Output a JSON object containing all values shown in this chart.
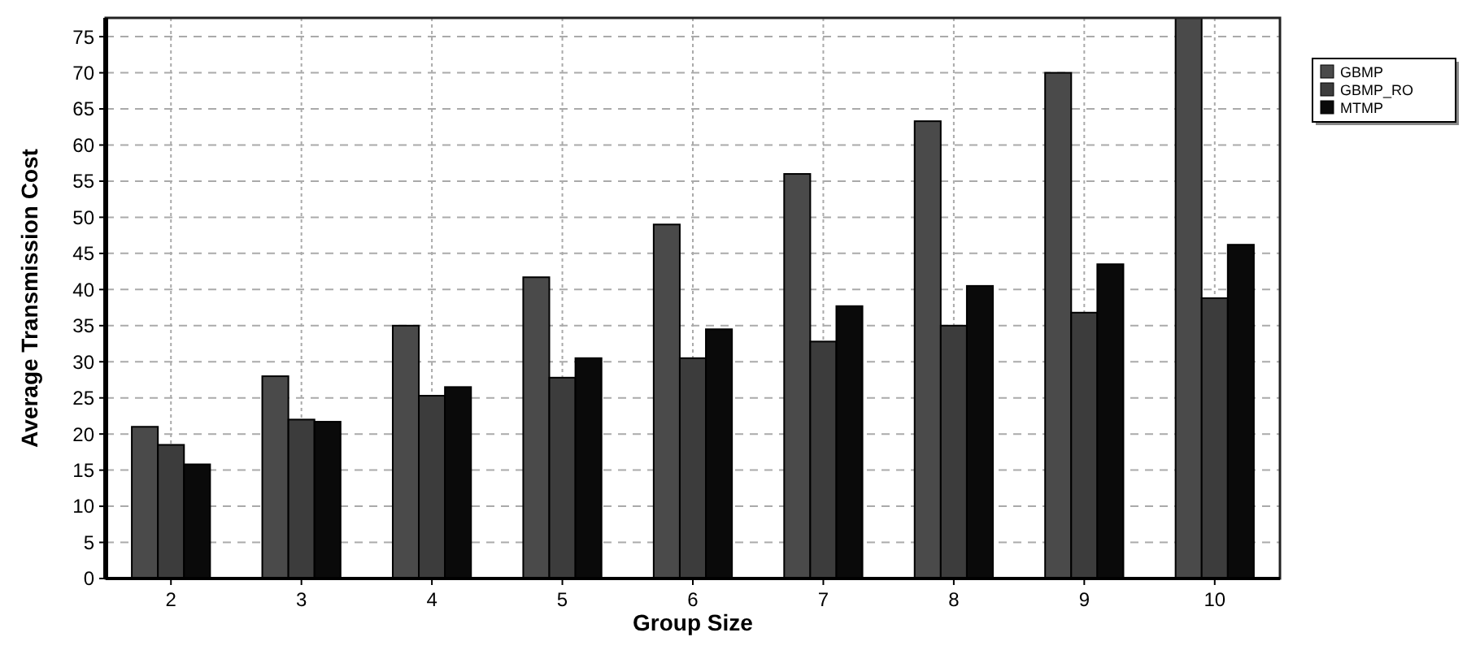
{
  "chart_data": {
    "type": "bar",
    "xlabel": "Group Size",
    "ylabel": "Average Transmission Cost",
    "categories": [
      "2",
      "3",
      "4",
      "5",
      "6",
      "7",
      "8",
      "9",
      "10"
    ],
    "series": [
      {
        "name": "GBMP",
        "color": "#4a4a4a",
        "values": [
          21,
          28,
          35,
          41.7,
          49,
          56,
          63.3,
          70,
          77.6
        ]
      },
      {
        "name": "GBMP_RO",
        "color": "#3c3c3c",
        "values": [
          18.5,
          22,
          25.3,
          27.8,
          30.5,
          32.8,
          35,
          36.8,
          38.8
        ]
      },
      {
        "name": "MTMP",
        "color": "#0a0a0a",
        "values": [
          15.8,
          21.7,
          26.5,
          30.5,
          34.5,
          37.7,
          40.5,
          43.5,
          46.2
        ]
      }
    ],
    "ylim": [
      0,
      77.6
    ],
    "yticks": [
      0,
      5,
      10,
      15,
      20,
      25,
      30,
      35,
      40,
      45,
      50,
      55,
      60,
      65,
      70,
      75
    ],
    "grid": true,
    "legend": "top right"
  }
}
